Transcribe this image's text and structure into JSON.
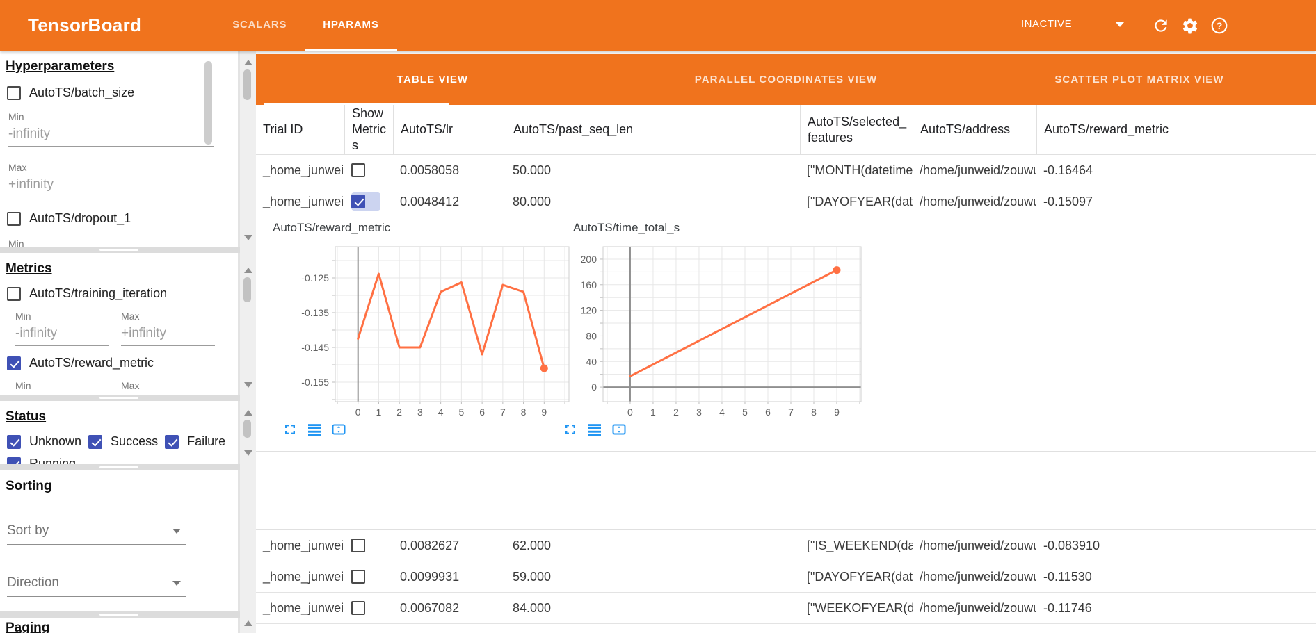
{
  "app": {
    "title": "TensorBoard",
    "nav_tabs": [
      {
        "label": "SCALARS",
        "active": false
      },
      {
        "label": "HPARAMS",
        "active": true
      }
    ],
    "run_status": "INACTIVE",
    "header_icons": [
      "dropdown-caret-icon",
      "refresh-icon",
      "settings-gear-icon",
      "help-icon"
    ]
  },
  "sidebar": {
    "hyperparameters": {
      "heading": "Hyperparameters",
      "min_label": "Min",
      "max_label": "Max",
      "min_placeholder": "-infinity",
      "max_placeholder": "+infinity",
      "params": [
        {
          "label": "AutoTS/batch_size",
          "checked": false
        },
        {
          "label": "AutoTS/dropout_1",
          "checked": false
        }
      ]
    },
    "metrics": {
      "heading": "Metrics",
      "min_label": "Min",
      "max_label": "Max",
      "min_placeholder": "-infinity",
      "max_placeholder": "+infinity",
      "items": [
        {
          "label": "AutoTS/training_iteration",
          "checked": false
        },
        {
          "label": "AutoTS/reward_metric",
          "checked": true
        }
      ]
    },
    "status": {
      "heading": "Status",
      "options": [
        {
          "label": "Unknown",
          "checked": true
        },
        {
          "label": "Success",
          "checked": true
        },
        {
          "label": "Failure",
          "checked": true
        },
        {
          "label": "Running",
          "checked": true
        }
      ]
    },
    "sorting": {
      "heading": "Sorting",
      "sort_by_label": "Sort by",
      "direction_label": "Direction"
    },
    "paging": {
      "heading": "Paging"
    }
  },
  "main": {
    "view_tabs": [
      {
        "label": "TABLE VIEW",
        "active": true
      },
      {
        "label": "PARALLEL COORDINATES VIEW",
        "active": false
      },
      {
        "label": "SCATTER PLOT MATRIX VIEW",
        "active": false
      }
    ],
    "table": {
      "columns": [
        "Trial ID",
        "Show Metrics",
        "AutoTS/lr",
        "AutoTS/past_seq_len",
        "AutoTS/selected_features",
        "AutoTS/address",
        "AutoTS/reward_metric"
      ],
      "rows": [
        {
          "trial_id": "_home_junweid_z…",
          "show_metrics": false,
          "lr": "0.0058058",
          "past_seq_len": "50.000",
          "selected_features": "[\"MONTH(datetime)\", \"I…",
          "address": "/home/junweid/zouwu/aut…",
          "reward_metric": "-0.16464"
        },
        {
          "trial_id": "_home_junweid_z…",
          "show_metrics": true,
          "lr": "0.0048412",
          "past_seq_len": "80.000",
          "selected_features": "[\"DAYOFYEAR(datetime…",
          "address": "/home/junweid/zouwu/aut…",
          "reward_metric": "-0.15097"
        },
        {
          "trial_id": "_home_junweid_z…",
          "show_metrics": false,
          "lr": "0.0082627",
          "past_seq_len": "62.000",
          "selected_features": "[\"IS_WEEKEND(datetim…",
          "address": "/home/junweid/zouwu/aut…",
          "reward_metric": "-0.083910"
        },
        {
          "trial_id": "_home_junweid_z…",
          "show_metrics": false,
          "lr": "0.0099931",
          "past_seq_len": "59.000",
          "selected_features": "[\"DAYOFYEAR(datetime…",
          "address": "/home/junweid/zouwu/aut…",
          "reward_metric": "-0.11530"
        },
        {
          "trial_id": "_home_junweid_z…",
          "show_metrics": false,
          "lr": "0.0067082",
          "past_seq_len": "84.000",
          "selected_features": "[\"WEEKOFYEAR(dateti…",
          "address": "/home/junweid/zouwu/aut…",
          "reward_metric": "-0.11746"
        }
      ]
    },
    "chart_icons": [
      "fullscreen-icon",
      "data-table-icon",
      "fit-domain-icon"
    ],
    "chart_data": [
      {
        "type": "line",
        "title": "AutoTS/reward_metric",
        "x": [
          0,
          1,
          2,
          3,
          4,
          5,
          6,
          7,
          8,
          9
        ],
        "values": [
          -0.1425,
          -0.1238,
          -0.145,
          -0.145,
          -0.129,
          -0.1263,
          -0.147,
          -0.127,
          -0.129,
          -0.151
        ],
        "xlim": [
          -1.1,
          10.2
        ],
        "ylim": [
          -0.1606,
          -0.116
        ],
        "xgrid_step": 1,
        "ygrid_step": 0.005,
        "xticks": [
          0,
          1,
          2,
          3,
          4,
          5,
          6,
          7,
          8,
          9
        ],
        "xtick_labels": [
          "0",
          "1",
          "2",
          "3",
          "4",
          "5",
          "6",
          "7",
          "8",
          "9"
        ],
        "yticks": [
          -0.125,
          -0.135,
          -0.145,
          -0.155
        ],
        "ytick_labels": [
          "-0.125",
          "-0.135",
          "-0.145",
          "-0.155"
        ],
        "axis_x": 0,
        "axis_y": null,
        "grid": true,
        "legend": false,
        "line_color": "#ff7043",
        "end_dot": true
      },
      {
        "type": "line",
        "title": "AutoTS/time_total_s",
        "x": [
          0,
          9
        ],
        "values": [
          17,
          183
        ],
        "xlim": [
          -1.18,
          10.06
        ],
        "ylim": [
          -22.7,
          219.5
        ],
        "xgrid_step": 1,
        "ygrid_step": 20,
        "xticks": [
          0,
          1,
          2,
          3,
          4,
          5,
          6,
          7,
          8,
          9
        ],
        "xtick_labels": [
          "0",
          "1",
          "2",
          "3",
          "4",
          "5",
          "6",
          "7",
          "8",
          "9"
        ],
        "yticks": [
          0,
          40,
          80,
          120,
          160,
          200
        ],
        "ytick_labels": [
          "0",
          "40",
          "80",
          "120",
          "160",
          "200"
        ],
        "axis_x": 0,
        "axis_y": 0,
        "grid": true,
        "legend": false,
        "line_color": "#ff7043",
        "end_dot": true
      }
    ]
  }
}
